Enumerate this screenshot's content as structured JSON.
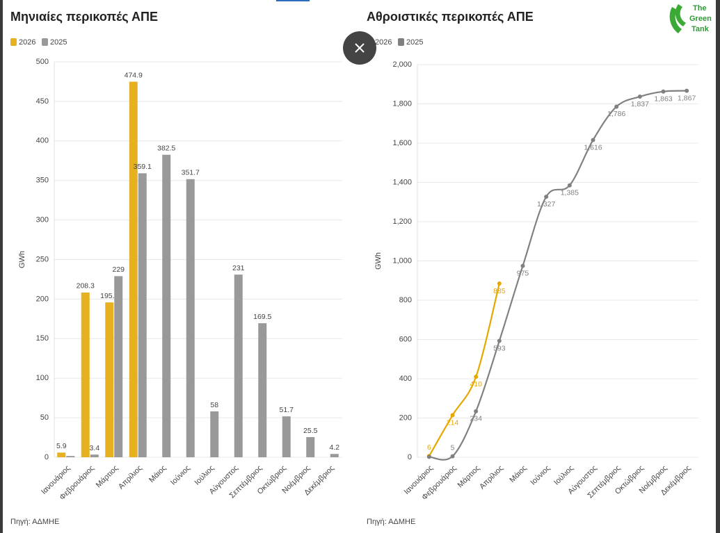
{
  "chart_data": [
    {
      "type": "bar",
      "title": "Μηνιαίες περικοπές ΑΠΕ",
      "y_label": "GWh",
      "source": "Πηγή: ΑΔΜΗΕ",
      "categories": [
        "Ιανουάριος",
        "Φεβρουάριος",
        "Μάρτιος",
        "Απρίλιος",
        "Μάιος",
        "Ιούνιος",
        "Ιούλιος",
        "Αύγουστος",
        "Σεπτέμβριος",
        "Οκτώβριος",
        "Νοέμβριος",
        "Δεκέμβριος"
      ],
      "series": [
        {
          "name": "2026",
          "color": "#e6b120",
          "values": [
            5.9,
            208.3,
            195.8,
            474.9,
            null,
            null,
            null,
            null,
            null,
            null,
            null,
            null
          ]
        },
        {
          "name": "2025",
          "color": "#999999",
          "values": [
            1.6,
            3.4,
            229,
            359.1,
            382.5,
            351.7,
            58,
            231,
            169.5,
            51.7,
            25.5,
            4.2
          ],
          "value_labels": [
            null,
            "3.4",
            "229",
            "359.1",
            "382.5",
            "351.7",
            "58",
            "231",
            "169.5",
            "51.7",
            "25.5",
            "4.2"
          ]
        }
      ],
      "ylim": [
        0,
        500
      ],
      "yticks": [
        0,
        50,
        100,
        150,
        200,
        250,
        300,
        350,
        400,
        450,
        500
      ],
      "grid": true,
      "legend": "top-left"
    },
    {
      "type": "line",
      "title": "Αθροιστικές περικοπές ΑΠΕ",
      "y_label": "GWh",
      "source": "Πηγή: ΑΔΜΗΕ",
      "categories": [
        "Ιανουάριος",
        "Φεβρουάριος",
        "Μάρτιος",
        "Απρίλιος",
        "Μάιος",
        "Ιούνιος",
        "Ιούλιος",
        "Αύγουστος",
        "Σεπτέμβριος",
        "Οκτώβριος",
        "Νοέμβριος",
        "Δεκέμβριος"
      ],
      "series": [
        {
          "name": "2026",
          "color": "#e6a800",
          "values": [
            6,
            214,
            410,
            885,
            null,
            null,
            null,
            null,
            null,
            null,
            null,
            null
          ]
        },
        {
          "name": "2025",
          "color": "#808080",
          "values": [
            2,
            5,
            234,
            593,
            975,
            1327,
            1385,
            1616,
            1786,
            1837,
            1863,
            1867
          ],
          "value_labels": [
            null,
            "5",
            "234",
            "593",
            "975",
            "1,327",
            "1,385",
            "1,616",
            "1,786",
            "1,837",
            "1,863",
            "1,867"
          ]
        }
      ],
      "ylim": [
        0,
        2000
      ],
      "yticks": [
        0,
        200,
        400,
        600,
        800,
        {
          "value": 1000,
          "label": "1,000"
        },
        {
          "value": 1200,
          "label": "1,200"
        },
        {
          "value": 1400,
          "label": "1,400"
        },
        {
          "value": 1600,
          "label": "1,600"
        },
        {
          "value": 1800,
          "label": "1,800"
        },
        {
          "value": 2000,
          "label": "2,000"
        }
      ],
      "grid": true,
      "legend": "top-left"
    }
  ],
  "logo": [
    "The",
    "Green",
    "Tank"
  ]
}
